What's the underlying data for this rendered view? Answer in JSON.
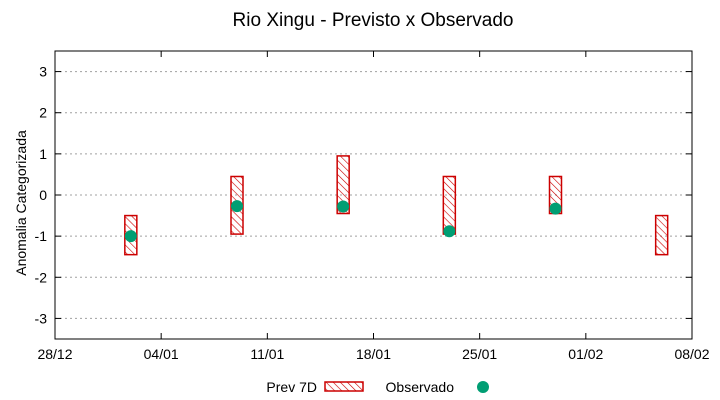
{
  "chart_data": {
    "type": "range-bar-with-points",
    "title": "Rio Xingu - Previsto x Observado",
    "ylabel": "Anomalia Categorizada",
    "xlabel": "",
    "ylim": [
      -3.5,
      3.5
    ],
    "yticks": [
      -3,
      -2,
      -1,
      0,
      1,
      2,
      3
    ],
    "xlim": [
      0,
      42
    ],
    "xticks": [
      {
        "day": 0,
        "label": "28/12"
      },
      {
        "day": 7,
        "label": "04/01"
      },
      {
        "day": 14,
        "label": "11/01"
      },
      {
        "day": 21,
        "label": "18/01"
      },
      {
        "day": 28,
        "label": "25/01"
      },
      {
        "day": 35,
        "label": "01/02"
      },
      {
        "day": 42,
        "label": "08/02"
      }
    ],
    "grid": true,
    "series": [
      {
        "name": "Prev 7D",
        "kind": "range",
        "color": "#cc0000",
        "values": [
          {
            "day": 5,
            "low": -1.45,
            "high": -0.5
          },
          {
            "day": 12,
            "low": -0.95,
            "high": 0.45
          },
          {
            "day": 19,
            "low": -0.45,
            "high": 0.95
          },
          {
            "day": 26,
            "low": -0.95,
            "high": 0.45
          },
          {
            "day": 33,
            "low": -0.45,
            "high": 0.45
          },
          {
            "day": 40,
            "low": -1.45,
            "high": -0.5
          }
        ]
      },
      {
        "name": "Observado",
        "kind": "point",
        "color": "#009e73",
        "values": [
          {
            "day": 5,
            "y": -1.0
          },
          {
            "day": 12,
            "y": -0.27
          },
          {
            "day": 19,
            "y": -0.28
          },
          {
            "day": 26,
            "y": -0.88
          },
          {
            "day": 33,
            "y": -0.33
          }
        ]
      }
    ],
    "legend": [
      "Prev 7D",
      "Observado"
    ]
  }
}
